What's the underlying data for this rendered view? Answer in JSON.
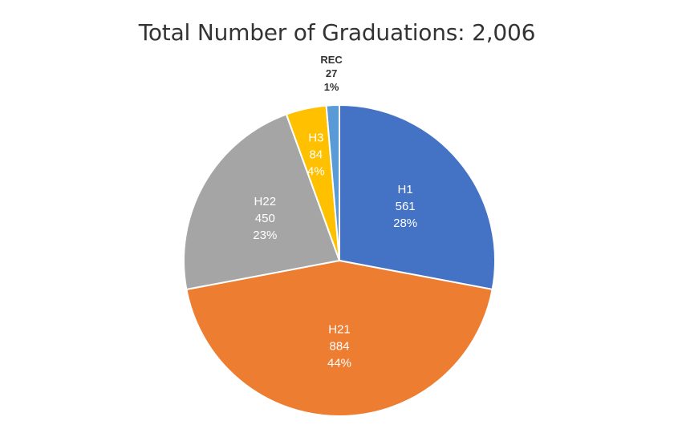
{
  "chart_data": {
    "type": "pie",
    "title": "Total Number of Graduations: 2,006",
    "slices": [
      {
        "label": "H1",
        "value": 561,
        "percent": "28%",
        "value_text": "561",
        "color": "#4472c4",
        "label_color": "white",
        "label_position": "inside"
      },
      {
        "label": "H21",
        "value": 884,
        "percent": "44%",
        "value_text": "884",
        "color": "#ed7d31",
        "label_color": "white",
        "label_position": "inside"
      },
      {
        "label": "H22",
        "value": 450,
        "percent": "23%",
        "value_text": "450",
        "color": "#a5a5a5",
        "label_color": "white",
        "label_position": "inside"
      },
      {
        "label": "H3",
        "value": 84,
        "percent": "4%",
        "value_text": "84",
        "color": "#ffc000",
        "label_color": "white",
        "label_position": "inside"
      },
      {
        "label": "REC",
        "value": 27,
        "percent": "1%",
        "value_text": "27",
        "color": "#5b9bd5",
        "label_color": "dark",
        "label_position": "outside"
      }
    ],
    "start": "12 o'clock",
    "direction": "clockwise",
    "legend": "none"
  }
}
